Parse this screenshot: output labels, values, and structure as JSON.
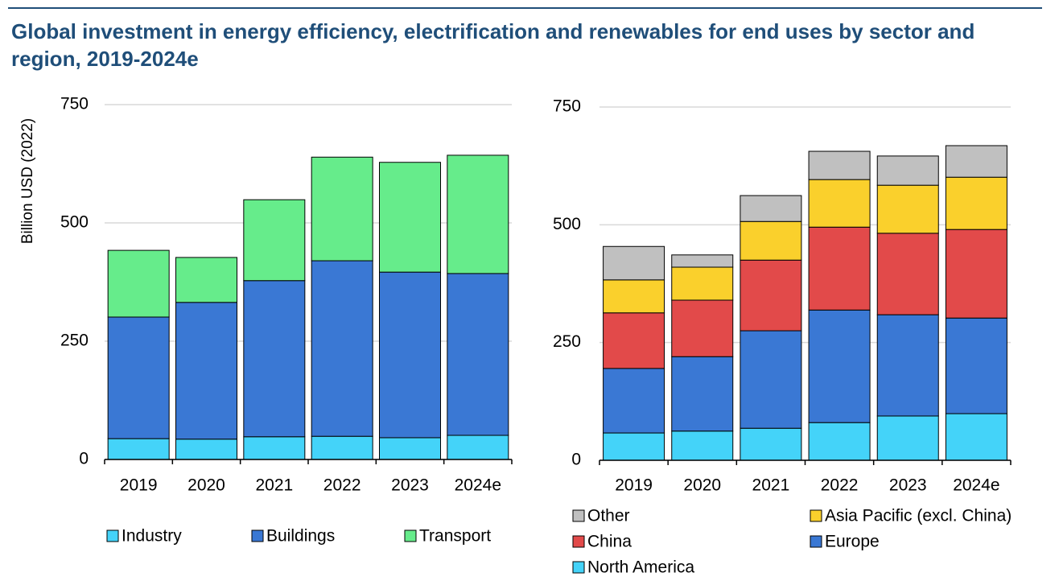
{
  "title": "Global investment in energy efficiency, electrification and renewables for end uses by sector and region, 2019-2024e",
  "chart_data": [
    {
      "type": "bar",
      "stacked": true,
      "y_label": "Billion USD (2022)",
      "categories": [
        "2019",
        "2020",
        "2021",
        "2022",
        "2023",
        "2024e"
      ],
      "ylim": [
        0,
        750
      ],
      "yticks": [
        0,
        250,
        500,
        750
      ],
      "grid": true,
      "series": [
        {
          "name": "Industry",
          "color": "#44d3f9",
          "values": [
            44,
            43,
            48,
            49,
            46,
            51
          ]
        },
        {
          "name": "Buildings",
          "color": "#3a78d4",
          "values": [
            257,
            289,
            330,
            371,
            350,
            342
          ]
        },
        {
          "name": "Transport",
          "color": "#66ec8b",
          "values": [
            141,
            95,
            171,
            219,
            232,
            250
          ]
        }
      ]
    },
    {
      "type": "bar",
      "stacked": true,
      "categories": [
        "2019",
        "2020",
        "2021",
        "2022",
        "2023",
        "2024e"
      ],
      "ylim": [
        0,
        750
      ],
      "yticks": [
        0,
        250,
        500,
        750
      ],
      "grid": true,
      "series": [
        {
          "name": "Other",
          "color": "#c0c0c0",
          "values": [
            71,
            26,
            55,
            60,
            62,
            67
          ]
        },
        {
          "name": "Asia Pacific (excl. China)",
          "color": "#fad02c",
          "values": [
            70,
            70,
            82,
            101,
            102,
            111
          ]
        },
        {
          "name": "China",
          "color": "#e24a4a",
          "values": [
            118,
            120,
            150,
            176,
            173,
            188
          ]
        },
        {
          "name": "Europe",
          "color": "#3a78d4",
          "values": [
            137,
            158,
            207,
            239,
            215,
            203
          ]
        },
        {
          "name": "North America",
          "color": "#44d3f9",
          "values": [
            58,
            62,
            68,
            80,
            94,
            99
          ]
        }
      ]
    }
  ]
}
